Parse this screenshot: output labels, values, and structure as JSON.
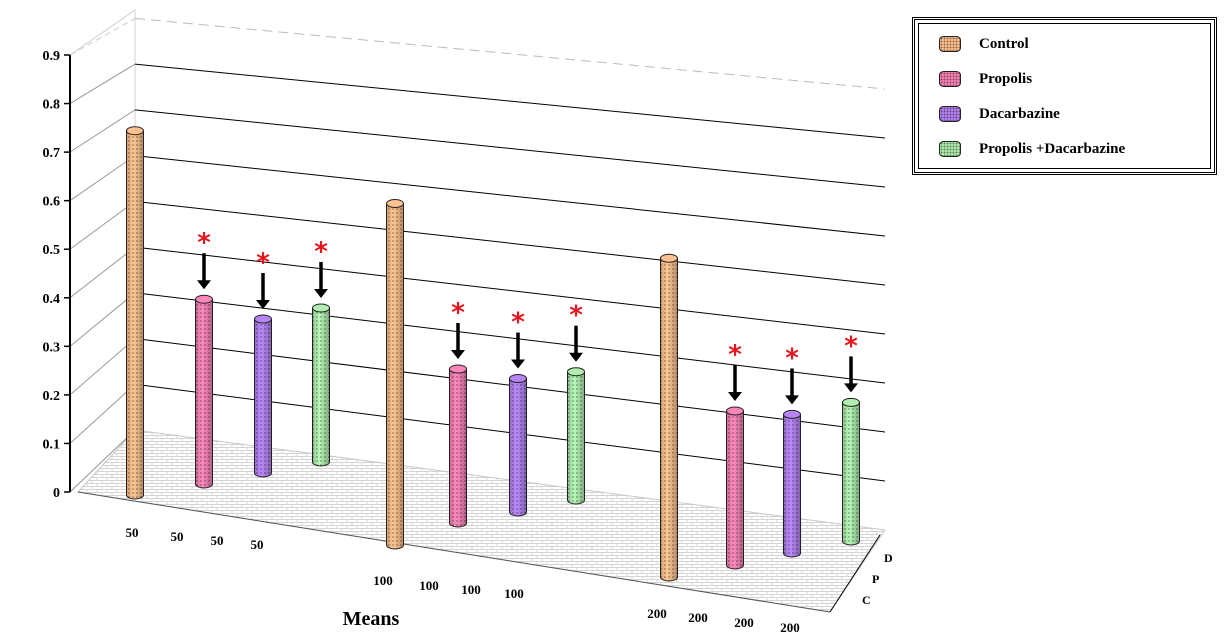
{
  "chart_data": {
    "type": "bar",
    "style": "3d-cylinder",
    "xlabel": "Means",
    "ylim": [
      0,
      0.9
    ],
    "yticks": [
      "0",
      "0.1",
      "0.2",
      "0.3",
      "0.4",
      "0.5",
      "0.6",
      "0.7",
      "0.8",
      "0.9"
    ],
    "groups": [
      {
        "dose_labels": [
          "50",
          "50",
          "50",
          "50"
        ]
      },
      {
        "dose_labels": [
          "100",
          "100",
          "100",
          "100"
        ]
      },
      {
        "dose_labels": [
          "200",
          "200",
          "200",
          "200"
        ]
      }
    ],
    "depth_labels": [
      "D",
      "P",
      "C"
    ],
    "series": [
      {
        "name": "Control",
        "color": "#f5b887",
        "values": [
          0.8,
          0.75,
          0.7
        ],
        "significant": [
          false,
          false,
          false
        ]
      },
      {
        "name": "Propolis",
        "color": "#f07fb0",
        "values": [
          0.36,
          0.3,
          0.3
        ],
        "significant": [
          true,
          true,
          true
        ]
      },
      {
        "name": "Dacarbazine",
        "color": "#ad7ee8",
        "values": [
          0.3,
          0.26,
          0.27
        ],
        "significant": [
          true,
          true,
          true
        ]
      },
      {
        "name": "Propolis +Dacarbazine",
        "color": "#a9e4a9",
        "values": [
          0.3,
          0.25,
          0.27
        ],
        "significant": [
          true,
          true,
          true
        ]
      }
    ],
    "significance_marker": "*",
    "significance_color": "#e8141e",
    "grid": true,
    "legend_position": "top-right"
  }
}
